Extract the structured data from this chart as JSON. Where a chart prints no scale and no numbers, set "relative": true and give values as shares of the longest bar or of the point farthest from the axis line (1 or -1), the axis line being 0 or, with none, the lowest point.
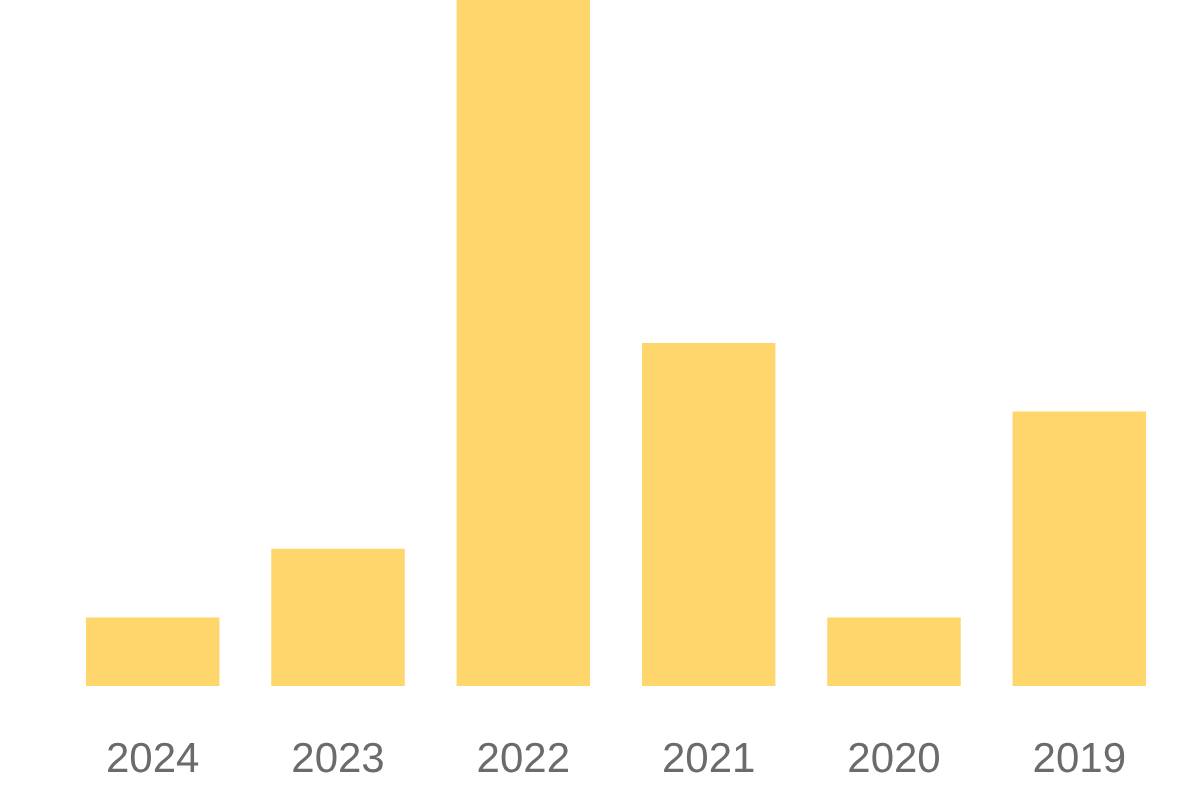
{
  "chart_data": {
    "type": "bar",
    "relative": true,
    "categories": [
      "2024",
      "2023",
      "2022",
      "2021",
      "2020",
      "2019"
    ],
    "values": [
      0.1,
      0.2,
      1,
      0.5,
      0.1,
      0.4
    ],
    "color": "#ffd66b"
  }
}
